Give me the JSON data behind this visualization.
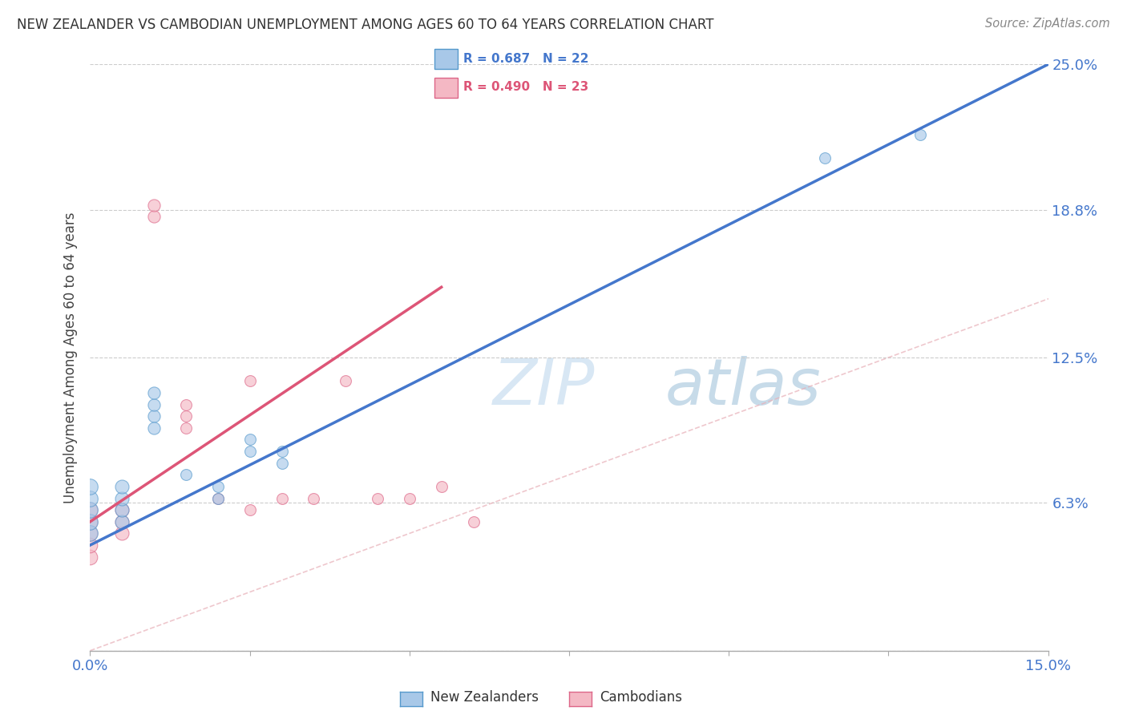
{
  "title": "NEW ZEALANDER VS CAMBODIAN UNEMPLOYMENT AMONG AGES 60 TO 64 YEARS CORRELATION CHART",
  "source": "Source: ZipAtlas.com",
  "ylabel": "Unemployment Among Ages 60 to 64 years",
  "xlim": [
    0.0,
    0.15
  ],
  "ylim": [
    0.0,
    0.25
  ],
  "xtick_positions": [
    0.0,
    0.025,
    0.05,
    0.075,
    0.1,
    0.125,
    0.15
  ],
  "xtick_labels": [
    "0.0%",
    "",
    "",
    "",
    "",
    "",
    "15.0%"
  ],
  "ytick_positions": [
    0.0,
    0.063,
    0.125,
    0.188,
    0.25
  ],
  "ytick_labels": [
    "",
    "6.3%",
    "12.5%",
    "18.8%",
    "25.0%"
  ],
  "nz_color": "#a8c8e8",
  "camb_color": "#f4b8c4",
  "nz_edge_color": "#5599cc",
  "camb_edge_color": "#dd6688",
  "nz_line_color": "#4477cc",
  "camb_line_color": "#dd5577",
  "watermark_zip": "ZIP",
  "watermark_atlas": "atlas",
  "background_color": "#ffffff",
  "grid_color": "#cccccc",
  "legend_r1": "R = 0.687",
  "legend_n1": "N = 22",
  "legend_r2": "R = 0.490",
  "legend_n2": "N = 23",
  "nz_x": [
    0.0,
    0.0,
    0.0,
    0.0,
    0.0,
    0.005,
    0.005,
    0.005,
    0.005,
    0.01,
    0.01,
    0.01,
    0.01,
    0.015,
    0.02,
    0.02,
    0.025,
    0.025,
    0.03,
    0.03,
    0.115,
    0.13
  ],
  "nz_y": [
    0.05,
    0.055,
    0.06,
    0.065,
    0.07,
    0.055,
    0.06,
    0.065,
    0.07,
    0.1,
    0.105,
    0.095,
    0.11,
    0.075,
    0.065,
    0.07,
    0.09,
    0.085,
    0.085,
    0.08,
    0.21,
    0.22
  ],
  "nz_sizes": [
    200,
    200,
    200,
    200,
    200,
    150,
    150,
    150,
    150,
    120,
    120,
    120,
    120,
    100,
    100,
    100,
    100,
    100,
    100,
    100,
    100,
    100
  ],
  "camb_x": [
    0.0,
    0.0,
    0.0,
    0.0,
    0.0,
    0.005,
    0.005,
    0.005,
    0.01,
    0.01,
    0.015,
    0.015,
    0.015,
    0.02,
    0.025,
    0.025,
    0.03,
    0.035,
    0.04,
    0.045,
    0.05,
    0.055,
    0.06
  ],
  "camb_y": [
    0.04,
    0.045,
    0.05,
    0.055,
    0.06,
    0.05,
    0.055,
    0.06,
    0.185,
    0.19,
    0.095,
    0.1,
    0.105,
    0.065,
    0.115,
    0.06,
    0.065,
    0.065,
    0.115,
    0.065,
    0.065,
    0.07,
    0.055
  ],
  "camb_sizes": [
    180,
    180,
    180,
    180,
    180,
    150,
    150,
    150,
    120,
    120,
    100,
    100,
    100,
    100,
    100,
    100,
    100,
    100,
    100,
    100,
    100,
    100,
    100
  ],
  "nz_line_x0": 0.0,
  "nz_line_y0": 0.045,
  "nz_line_x1": 0.15,
  "nz_line_y1": 0.25,
  "camb_line_x0": 0.0,
  "camb_line_y0": 0.055,
  "camb_line_x1": 0.055,
  "camb_line_y1": 0.155
}
